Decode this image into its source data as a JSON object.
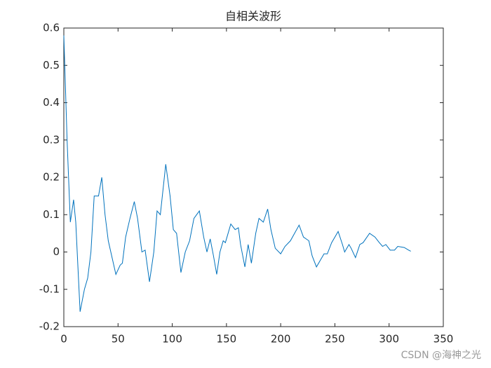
{
  "chart_data": {
    "type": "line",
    "title": "自相关波形",
    "x": [
      0,
      3,
      6,
      9,
      11,
      15,
      19,
      22,
      25,
      28,
      32,
      35,
      38,
      41,
      48,
      52,
      54,
      57,
      61,
      65,
      68,
      72,
      75,
      79,
      83,
      86,
      89,
      94,
      98,
      101,
      104,
      108,
      112,
      116,
      120,
      125,
      129,
      132,
      135,
      138,
      141,
      144,
      147,
      149,
      154,
      158,
      161,
      163,
      167,
      170,
      173,
      177,
      180,
      184,
      188,
      191,
      195,
      200,
      204,
      209,
      217,
      221,
      226,
      229,
      233,
      237,
      240,
      243,
      247,
      253,
      257,
      259,
      263,
      265,
      269,
      273,
      276,
      282,
      287,
      291,
      294,
      297,
      301,
      305,
      308,
      314,
      318,
      320
    ],
    "series": [
      {
        "color": "#0072bd",
        "values": [
          0.58,
          0.3,
          0.08,
          0.14,
          0.08,
          -0.16,
          -0.1,
          -0.07,
          0.0,
          0.15,
          0.15,
          0.2,
          0.1,
          0.03,
          -0.06,
          -0.035,
          -0.03,
          0.04,
          0.09,
          0.135,
          0.09,
          0.0,
          0.005,
          -0.08,
          0.0,
          0.11,
          0.1,
          0.235,
          0.15,
          0.06,
          0.05,
          -0.055,
          0.0,
          0.03,
          0.09,
          0.11,
          0.04,
          0.0,
          0.035,
          -0.01,
          -0.06,
          0.0,
          0.03,
          0.025,
          0.075,
          0.06,
          0.065,
          0.02,
          -0.04,
          0.02,
          -0.03,
          0.05,
          0.09,
          0.08,
          0.115,
          0.06,
          0.01,
          -0.005,
          0.015,
          0.03,
          0.072,
          0.04,
          0.03,
          -0.01,
          -0.04,
          -0.02,
          -0.005,
          -0.005,
          0.025,
          0.055,
          0.02,
          0.0,
          0.02,
          0.01,
          -0.015,
          0.02,
          0.025,
          0.05,
          0.04,
          0.025,
          0.015,
          0.02,
          0.005,
          0.005,
          0.015,
          0.012,
          0.005,
          0.002
        ]
      }
    ],
    "xlim": [
      0,
      350
    ],
    "xticks": [
      0,
      50,
      100,
      150,
      200,
      250,
      300,
      350
    ],
    "ylim": [
      -0.2,
      0.6
    ],
    "yticks": [
      -0.2,
      -0.1,
      0,
      0.1,
      0.2,
      0.3,
      0.4,
      0.5,
      0.6
    ],
    "watermark": "CSDN @海神之光"
  }
}
